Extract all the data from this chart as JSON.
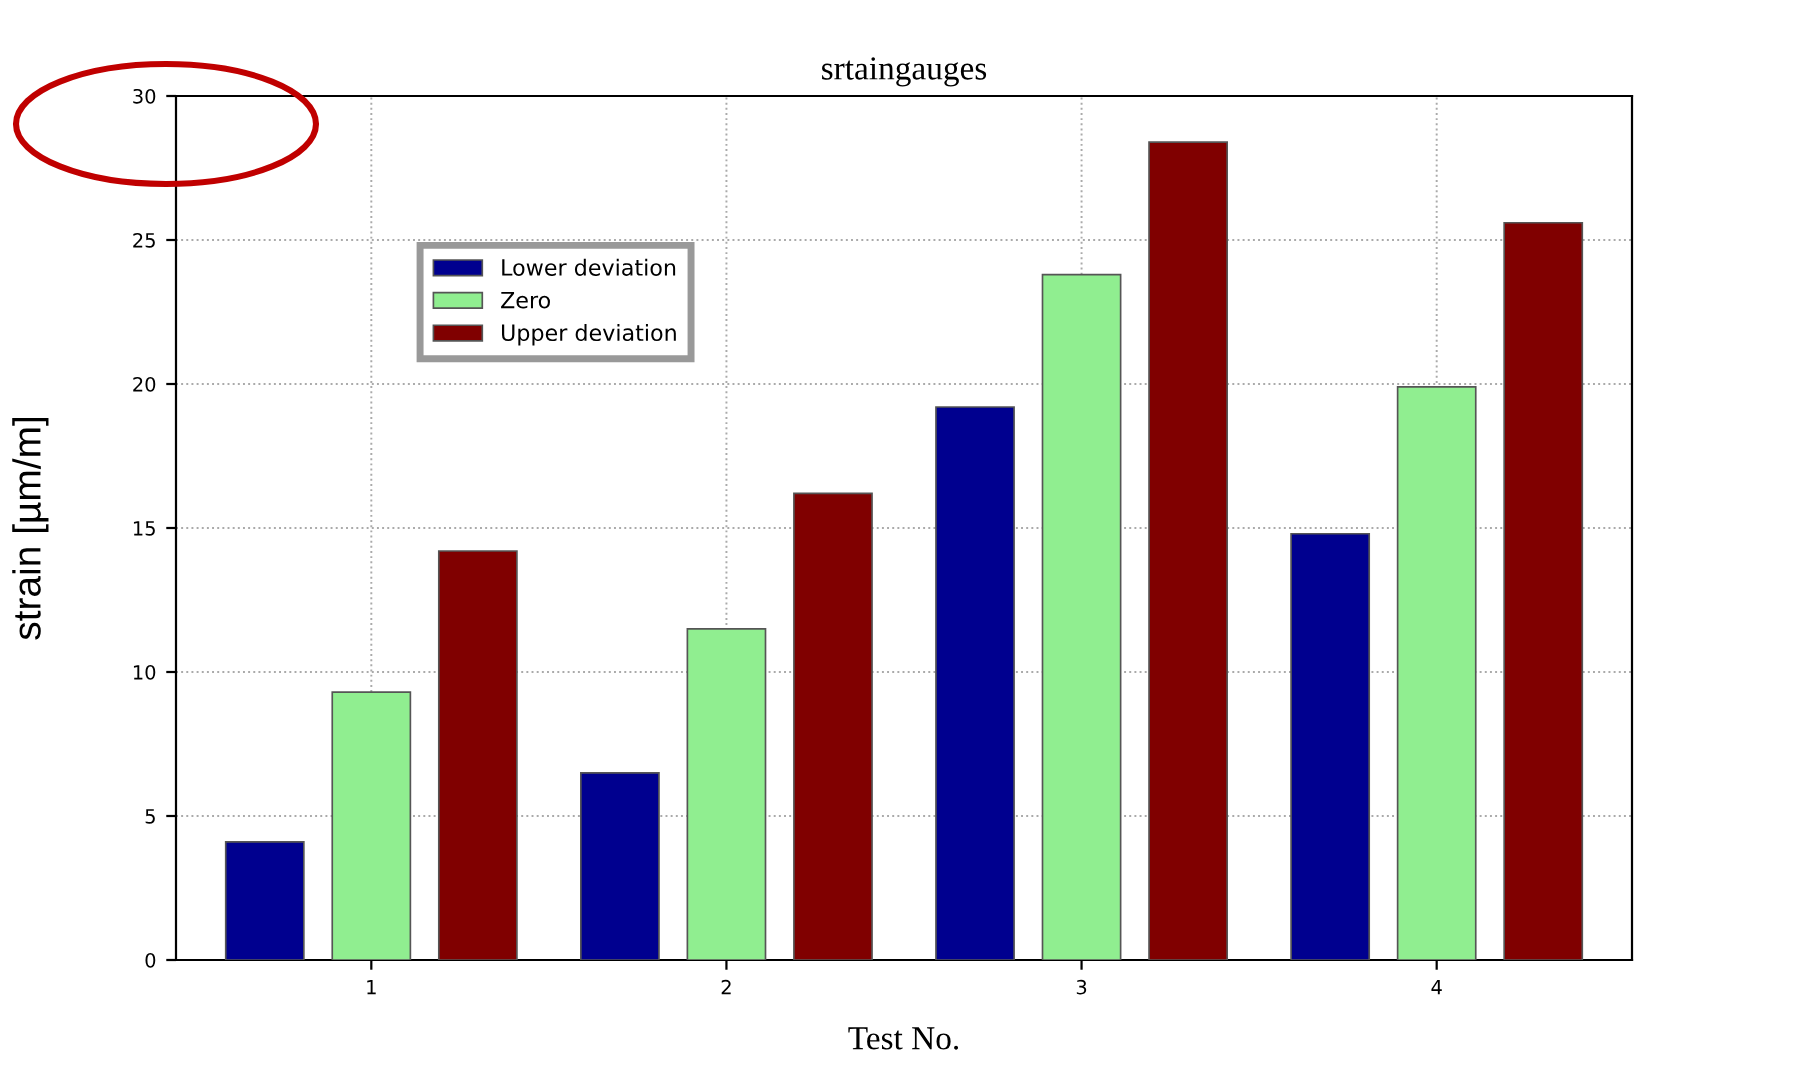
{
  "chart_data": {
    "type": "bar",
    "title": "srtaingauges",
    "xlabel": "Test No.",
    "ylabel": "strain [µm/m]",
    "categories": [
      "1",
      "2",
      "3",
      "4"
    ],
    "series": [
      {
        "name": "Lower deviation",
        "color": "#00008f",
        "values": [
          4.1,
          6.5,
          19.2,
          14.8
        ]
      },
      {
        "name": "Zero",
        "color": "#90ee90",
        "values": [
          9.3,
          11.5,
          23.8,
          19.9
        ]
      },
      {
        "name": "Upper deviation",
        "color": "#800000",
        "values": [
          14.2,
          16.2,
          28.4,
          25.6
        ]
      }
    ],
    "ylim": [
      0,
      30
    ],
    "yticks": [
      0,
      5,
      10,
      15,
      20,
      25,
      30
    ],
    "grid": true,
    "legend": "top left"
  }
}
